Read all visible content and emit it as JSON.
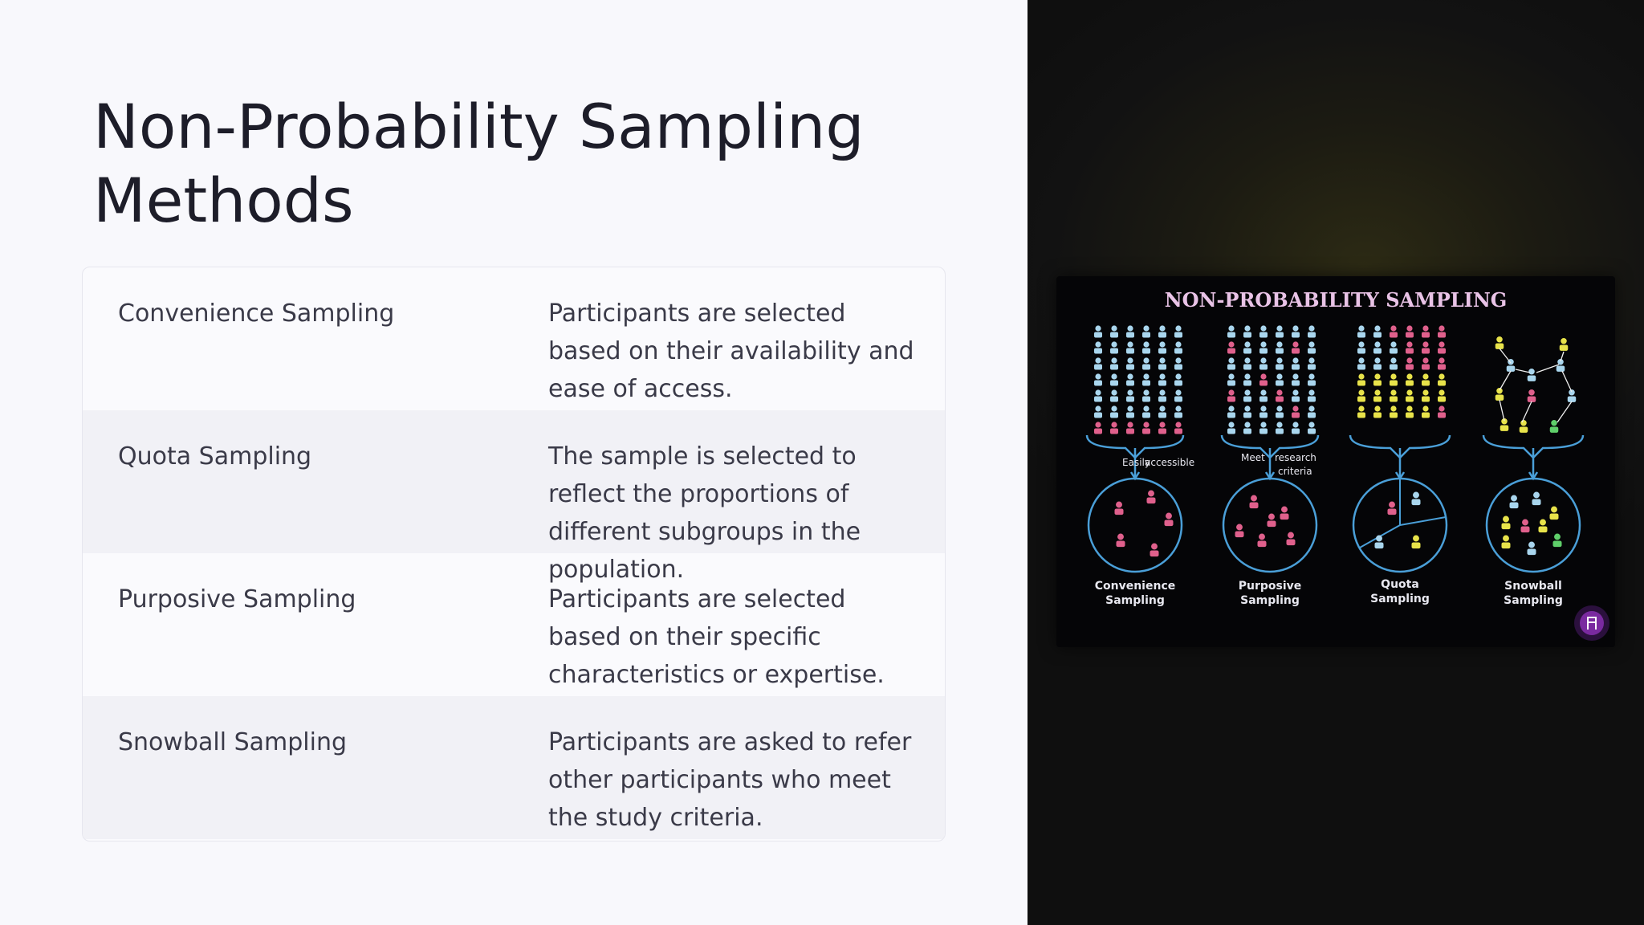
{
  "title": "Non-Probability Sampling Methods",
  "rows": [
    {
      "term": "Convenience Sampling",
      "description": "Participants are selected based on their availability and ease of access."
    },
    {
      "term": "Quota Sampling",
      "description": "The sample is selected to reflect the proportions of different subgroups in the population."
    },
    {
      "term": "Purposive Sampling",
      "description": "Participants are selected based on their specific characteristics or expertise."
    },
    {
      "term": "Snowball Sampling",
      "description": "Participants are asked to refer other participants who meet the study criteria."
    }
  ],
  "figure": {
    "title": "NON-PROBABILITY SAMPLING",
    "labels": {
      "easily": "Easily",
      "accessible": "accessible",
      "meet": "Meet",
      "research": "research",
      "criteria": "criteria"
    },
    "captions": [
      {
        "line1": "Convenience",
        "line2": "Sampling"
      },
      {
        "line1": "Purposive",
        "line2": "Sampling"
      },
      {
        "line1": "Quota",
        "line2": "Sampling"
      },
      {
        "line1": "Snowball",
        "line2": "Sampling"
      }
    ],
    "colors": {
      "light": "#a9d6ee",
      "pink": "#e0608c",
      "yellow": "#e8e34a",
      "green": "#5fcf6a",
      "ring": "#4a9fd8",
      "title": "#e9c3e6"
    },
    "badge_icon": "chair-icon"
  }
}
